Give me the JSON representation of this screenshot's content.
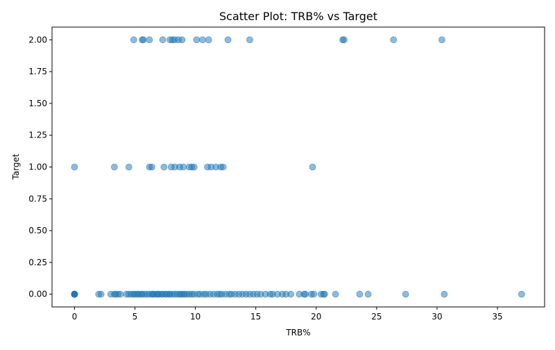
{
  "chart_data": {
    "type": "scatter",
    "title": "Scatter Plot: TRB% vs Target",
    "xlabel": "TRB%",
    "ylabel": "Target",
    "xlim": [
      -1.86,
      38.9
    ],
    "ylim": [
      -0.1,
      2.1
    ],
    "x_ticks": [
      0,
      5,
      10,
      15,
      20,
      25,
      30,
      35
    ],
    "x_tick_labels": [
      "0",
      "5",
      "10",
      "15",
      "20",
      "25",
      "30",
      "35"
    ],
    "y_ticks": [
      0.0,
      0.25,
      0.5,
      0.75,
      1.0,
      1.25,
      1.5,
      1.75,
      2.0
    ],
    "y_tick_labels": [
      "0.00",
      "0.25",
      "0.50",
      "0.75",
      "1.00",
      "1.25",
      "1.50",
      "1.75",
      "2.00"
    ],
    "grid": false,
    "legend": "none",
    "marker_color": "#1f77b4",
    "marker_opacity": 0.5,
    "series": [
      {
        "points": [
          [
            0,
            0
          ],
          [
            0,
            0
          ],
          [
            0,
            0
          ],
          [
            0,
            0
          ],
          [
            0,
            0
          ],
          [
            0,
            0
          ],
          [
            0,
            0
          ],
          [
            0,
            0
          ],
          [
            0,
            0
          ],
          [
            0,
            0
          ],
          [
            2.0,
            0
          ],
          [
            2.2,
            0
          ],
          [
            3.0,
            0
          ],
          [
            3.3,
            0
          ],
          [
            3.4,
            0
          ],
          [
            3.6,
            0
          ],
          [
            3.8,
            0
          ],
          [
            4.3,
            0
          ],
          [
            4.5,
            0
          ],
          [
            4.7,
            0
          ],
          [
            4.9,
            0
          ],
          [
            5.0,
            0
          ],
          [
            5.2,
            0
          ],
          [
            5.3,
            0
          ],
          [
            5.5,
            0
          ],
          [
            5.6,
            0
          ],
          [
            5.8,
            0
          ],
          [
            6.0,
            0
          ],
          [
            6.2,
            0
          ],
          [
            6.4,
            0
          ],
          [
            6.5,
            0
          ],
          [
            6.6,
            0
          ],
          [
            6.8,
            0
          ],
          [
            6.9,
            0
          ],
          [
            7.0,
            0
          ],
          [
            7.2,
            0
          ],
          [
            7.3,
            0
          ],
          [
            7.5,
            0
          ],
          [
            7.6,
            0
          ],
          [
            7.8,
            0
          ],
          [
            7.9,
            0
          ],
          [
            8.1,
            0
          ],
          [
            8.3,
            0
          ],
          [
            8.5,
            0
          ],
          [
            8.7,
            0
          ],
          [
            8.8,
            0
          ],
          [
            9.0,
            0
          ],
          [
            9.1,
            0
          ],
          [
            9.3,
            0
          ],
          [
            9.5,
            0
          ],
          [
            9.7,
            0
          ],
          [
            9.9,
            0
          ],
          [
            10.2,
            0
          ],
          [
            10.4,
            0
          ],
          [
            10.7,
            0
          ],
          [
            10.9,
            0
          ],
          [
            11.2,
            0
          ],
          [
            11.5,
            0
          ],
          [
            11.8,
            0
          ],
          [
            12.0,
            0
          ],
          [
            12.2,
            0
          ],
          [
            12.5,
            0
          ],
          [
            12.8,
            0
          ],
          [
            13.0,
            0
          ],
          [
            13.3,
            0
          ],
          [
            13.6,
            0
          ],
          [
            13.9,
            0
          ],
          [
            14.2,
            0
          ],
          [
            14.5,
            0
          ],
          [
            14.8,
            0
          ],
          [
            15.1,
            0
          ],
          [
            15.4,
            0
          ],
          [
            15.8,
            0
          ],
          [
            16.2,
            0
          ],
          [
            16.4,
            0
          ],
          [
            16.8,
            0
          ],
          [
            17.2,
            0
          ],
          [
            17.5,
            0
          ],
          [
            17.9,
            0
          ],
          [
            18.6,
            0
          ],
          [
            19.0,
            0
          ],
          [
            19.1,
            0
          ],
          [
            19.6,
            0
          ],
          [
            19.8,
            0
          ],
          [
            20.4,
            0
          ],
          [
            20.6,
            0
          ],
          [
            20.7,
            0
          ],
          [
            21.6,
            0
          ],
          [
            23.6,
            0
          ],
          [
            24.3,
            0
          ],
          [
            27.4,
            0
          ],
          [
            30.6,
            0
          ],
          [
            37.0,
            0
          ],
          [
            0,
            1
          ],
          [
            3.3,
            1
          ],
          [
            4.5,
            1
          ],
          [
            6.2,
            1
          ],
          [
            6.4,
            1
          ],
          [
            7.4,
            1
          ],
          [
            8.0,
            1
          ],
          [
            8.3,
            1
          ],
          [
            8.7,
            1
          ],
          [
            9.0,
            1
          ],
          [
            9.5,
            1
          ],
          [
            9.7,
            1
          ],
          [
            9.9,
            1
          ],
          [
            11.0,
            1
          ],
          [
            11.3,
            1
          ],
          [
            11.7,
            1
          ],
          [
            12.1,
            1
          ],
          [
            12.3,
            1
          ],
          [
            19.7,
            1
          ],
          [
            4.9,
            2
          ],
          [
            5.6,
            2
          ],
          [
            5.7,
            2
          ],
          [
            6.2,
            2
          ],
          [
            7.3,
            2
          ],
          [
            7.9,
            2
          ],
          [
            8.1,
            2
          ],
          [
            8.3,
            2
          ],
          [
            8.6,
            2
          ],
          [
            8.9,
            2
          ],
          [
            10.1,
            2
          ],
          [
            10.6,
            2
          ],
          [
            11.1,
            2
          ],
          [
            12.7,
            2
          ],
          [
            14.5,
            2
          ],
          [
            22.2,
            2
          ],
          [
            22.3,
            2
          ],
          [
            26.4,
            2
          ],
          [
            30.4,
            2
          ]
        ]
      }
    ]
  }
}
